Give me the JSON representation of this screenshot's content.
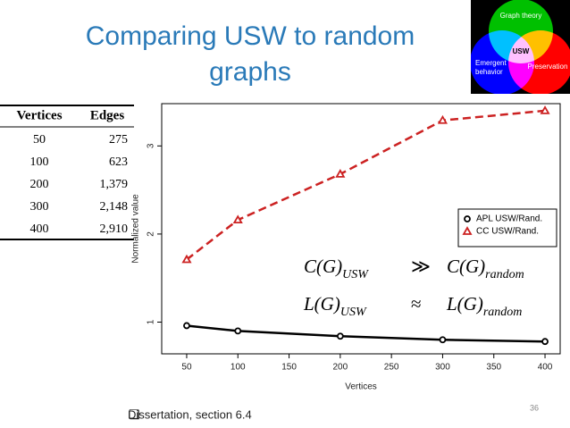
{
  "slide": {
    "title_lines": [
      "Comparing USW to random",
      "graphs"
    ],
    "bullet": "Dissertation, section 6.4",
    "page_number": 36
  },
  "venn": {
    "labels": [
      "Graph theory",
      "USW",
      "Emergent behavior",
      "Preservation"
    ]
  },
  "table": {
    "header": [
      "Vertices",
      "Edges"
    ],
    "rows": [
      [
        "50",
        "275"
      ],
      [
        "100",
        "623"
      ],
      [
        "200",
        "1,379"
      ],
      [
        "300",
        "2,148"
      ],
      [
        "400",
        "2,910"
      ]
    ]
  },
  "chart_data": {
    "type": "line",
    "x_label": "Vertices",
    "y_label": "Normalized value",
    "x": [
      50,
      100,
      200,
      300,
      400
    ],
    "series": [
      {
        "name": "APL USW/Rand.",
        "color": "#000000",
        "marker": "circle",
        "line_style": "solid",
        "values": [
          0.96,
          0.9,
          0.84,
          0.8,
          0.78
        ]
      },
      {
        "name": "CC USW/Rand.",
        "color": "#cc2222",
        "marker": "triangle",
        "line_style": "dashed",
        "values": [
          1.71,
          2.16,
          2.68,
          3.29,
          3.4
        ]
      }
    ],
    "xlim": [
      25.6,
      414.8
    ],
    "xticks": [
      50,
      100,
      150,
      200,
      250,
      300,
      350,
      400
    ],
    "ylim": [
      0.64,
      3.48
    ],
    "yticks": [
      1,
      2,
      3
    ],
    "legend": "upper-right",
    "annotations": [
      {
        "lhs": "C(G)",
        "lhs_sub": "USW",
        "op": "≫",
        "rhs": "C(G)",
        "rhs_sub": "random"
      },
      {
        "lhs": "L(G)",
        "lhs_sub": "USW",
        "op": "≈",
        "rhs": "L(G)",
        "rhs_sub": "random"
      }
    ]
  }
}
